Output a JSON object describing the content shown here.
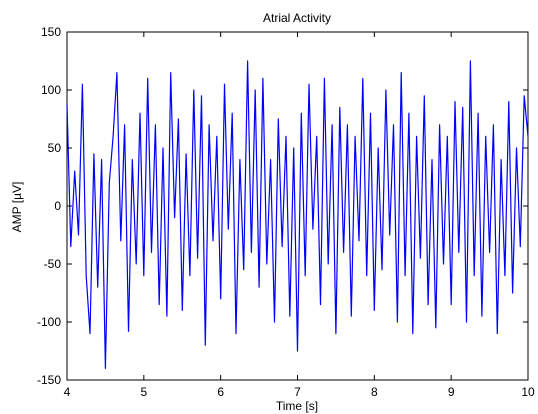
{
  "chart_data": {
    "type": "line",
    "title": "Atrial Activity",
    "xlabel": "Time [s]",
    "ylabel": "AMP [µV]",
    "xlim": [
      4,
      10
    ],
    "ylim": [
      -150,
      150
    ],
    "xticks": [
      4,
      5,
      6,
      7,
      8,
      9,
      10
    ],
    "yticks": [
      -150,
      -100,
      -50,
      0,
      50,
      100,
      150
    ],
    "xtick_labels": [
      "4",
      "5",
      "6",
      "7",
      "8",
      "9",
      "10"
    ],
    "ytick_labels": [
      "-150",
      "-100",
      "-50",
      "0",
      "50",
      "100",
      "150"
    ],
    "grid": false,
    "legend": "none",
    "series_color": "#0000ff",
    "series": [
      {
        "x": [
          4.0,
          4.05,
          4.1,
          4.15,
          4.2,
          4.25,
          4.3,
          4.35,
          4.4,
          4.45,
          4.5,
          4.55,
          4.6,
          4.65,
          4.7,
          4.75,
          4.8,
          4.85,
          4.9,
          4.95,
          5.0,
          5.05,
          5.1,
          5.15,
          5.2,
          5.25,
          5.3,
          5.35,
          5.4,
          5.45,
          5.5,
          5.55,
          5.6,
          5.65,
          5.7,
          5.75,
          5.8,
          5.85,
          5.9,
          5.95,
          6.0,
          6.05,
          6.1,
          6.15,
          6.2,
          6.25,
          6.3,
          6.35,
          6.4,
          6.45,
          6.5,
          6.55,
          6.6,
          6.65,
          6.7,
          6.75,
          6.8,
          6.85,
          6.9,
          6.95,
          7.0,
          7.05,
          7.1,
          7.15,
          7.2,
          7.25,
          7.3,
          7.35,
          7.4,
          7.45,
          7.5,
          7.55,
          7.6,
          7.65,
          7.7,
          7.75,
          7.8,
          7.85,
          7.9,
          7.95,
          8.0,
          8.05,
          8.1,
          8.15,
          8.2,
          8.25,
          8.3,
          8.35,
          8.4,
          8.45,
          8.5,
          8.55,
          8.6,
          8.65,
          8.7,
          8.75,
          8.8,
          8.85,
          8.9,
          8.95,
          9.0,
          9.05,
          9.1,
          9.15,
          9.2,
          9.25,
          9.3,
          9.35,
          9.4,
          9.45,
          9.5,
          9.55,
          9.6,
          9.65,
          9.7,
          9.75,
          9.8,
          9.85,
          9.9,
          9.95,
          10.0
        ],
        "values": [
          88,
          -35,
          30,
          -25,
          105,
          -60,
          -110,
          45,
          -70,
          40,
          -140,
          20,
          60,
          115,
          -30,
          70,
          -108,
          40,
          -50,
          80,
          -60,
          110,
          -40,
          70,
          -85,
          50,
          -95,
          115,
          -10,
          75,
          -90,
          45,
          -60,
          100,
          -45,
          95,
          -120,
          70,
          -30,
          60,
          -80,
          105,
          -20,
          80,
          -110,
          40,
          -55,
          125,
          -40,
          100,
          -70,
          110,
          -50,
          40,
          -100,
          75,
          -35,
          60,
          -95,
          50,
          -125,
          80,
          -60,
          105,
          -20,
          60,
          -85,
          110,
          -50,
          70,
          -110,
          85,
          -40,
          70,
          -95,
          60,
          -30,
          110,
          -60,
          80,
          -90,
          50,
          -55,
          100,
          -25,
          70,
          -100,
          115,
          -60,
          80,
          -110,
          60,
          -45,
          95,
          -85,
          40,
          -105,
          70,
          -50,
          60,
          -85,
          90,
          -40,
          85,
          -100,
          125,
          -60,
          80,
          -95,
          60,
          -40,
          70,
          -110,
          40,
          -60,
          90,
          -75,
          50,
          -35,
          95,
          60
        ]
      }
    ]
  }
}
